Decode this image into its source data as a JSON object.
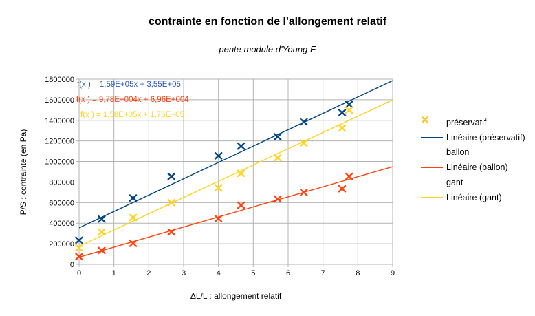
{
  "title": "contrainte en fonction de l'allongement relatif",
  "subtitle": "pente module d'Young E",
  "colors": {
    "background": "#ffffff",
    "grid": "#b3b3b3",
    "axis": "#b3b3b3",
    "text": "#000000",
    "series_blue": "#004586",
    "series_red": "#ff420e",
    "series_yellow": "#ffd320"
  },
  "equations": [
    {
      "text": "f(x ) = 1,59E+05x + 3,55E+05",
      "color": "#2e5bc6"
    },
    {
      "text": "f(x ) = 9,78E+004x + 6,96E+004",
      "color": "#ff420e"
    },
    {
      "text": "f(x ) = 1,58E+05x + 1,76E+05",
      "color": "#ffd320"
    }
  ],
  "legend": {
    "position": "right",
    "items": [
      {
        "label": "préservatif",
        "type": "marker",
        "color": "#004586"
      },
      {
        "label": "Linéaire (préservatif)",
        "type": "line",
        "color": "#004586"
      },
      {
        "label": "ballon",
        "type": "marker",
        "color": "#ff420e"
      },
      {
        "label": "Linéaire (ballon)",
        "type": "line",
        "color": "#ff420e"
      },
      {
        "label": "gant",
        "type": "marker",
        "color": "#ffd320"
      },
      {
        "label": "Linéaire (gant)",
        "type": "line",
        "color": "#ffd320"
      }
    ]
  },
  "chart_data": {
    "type": "scatter",
    "title": "contrainte en fonction de l'allongement relatif",
    "subtitle": "pente module d'Young E",
    "xlabel": "ΔL/L : allongement relatif",
    "ylabel": "P/S : contrainte (en Pa)",
    "xlim": [
      0,
      9
    ],
    "ylim": [
      0,
      1800000
    ],
    "x_ticks": [
      0,
      1,
      2,
      3,
      4,
      5,
      6,
      7,
      8,
      9
    ],
    "y_ticks": [
      0,
      200000,
      400000,
      600000,
      800000,
      1000000,
      1200000,
      1400000,
      1600000,
      1800000
    ],
    "grid": true,
    "legend_position": "right",
    "series": [
      {
        "name": "préservatif",
        "color": "#004586",
        "marker": "x",
        "points": [
          [
            0,
            235000
          ],
          [
            0.65,
            440000
          ],
          [
            1.55,
            645000
          ],
          [
            2.65,
            855000
          ],
          [
            4.0,
            1055000
          ],
          [
            4.65,
            1150000
          ],
          [
            5.7,
            1240000
          ],
          [
            6.45,
            1385000
          ],
          [
            7.55,
            1475000
          ],
          [
            7.75,
            1555000
          ]
        ],
        "trendline": {
          "name": "Linéaire (préservatif)",
          "slope": 159000,
          "intercept": 355000,
          "equation": "f(x ) = 1,59E+05x + 3,55E+05"
        }
      },
      {
        "name": "ballon",
        "color": "#ff420e",
        "marker": "x",
        "points": [
          [
            0,
            75000
          ],
          [
            0.65,
            135000
          ],
          [
            1.55,
            205000
          ],
          [
            2.65,
            315000
          ],
          [
            4.0,
            445000
          ],
          [
            4.65,
            575000
          ],
          [
            5.7,
            635000
          ],
          [
            6.45,
            700000
          ],
          [
            7.55,
            735000
          ],
          [
            7.75,
            855000
          ]
        ],
        "trendline": {
          "name": "Linéaire (ballon)",
          "slope": 97800,
          "intercept": 69600,
          "equation": "f(x ) = 9,78E+004x + 6,96E+004"
        }
      },
      {
        "name": "gant",
        "color": "#ffd320",
        "marker": "x",
        "points": [
          [
            0,
            160000
          ],
          [
            0.65,
            315000
          ],
          [
            1.55,
            455000
          ],
          [
            2.65,
            600000
          ],
          [
            4.0,
            745000
          ],
          [
            4.65,
            885000
          ],
          [
            5.7,
            1035000
          ],
          [
            6.45,
            1180000
          ],
          [
            7.55,
            1325000
          ],
          [
            7.75,
            1500000
          ]
        ],
        "trendline": {
          "name": "Linéaire (gant)",
          "slope": 158000,
          "intercept": 176000,
          "equation": "f(x ) = 1,58E+05x + 1,76E+05"
        }
      }
    ]
  }
}
